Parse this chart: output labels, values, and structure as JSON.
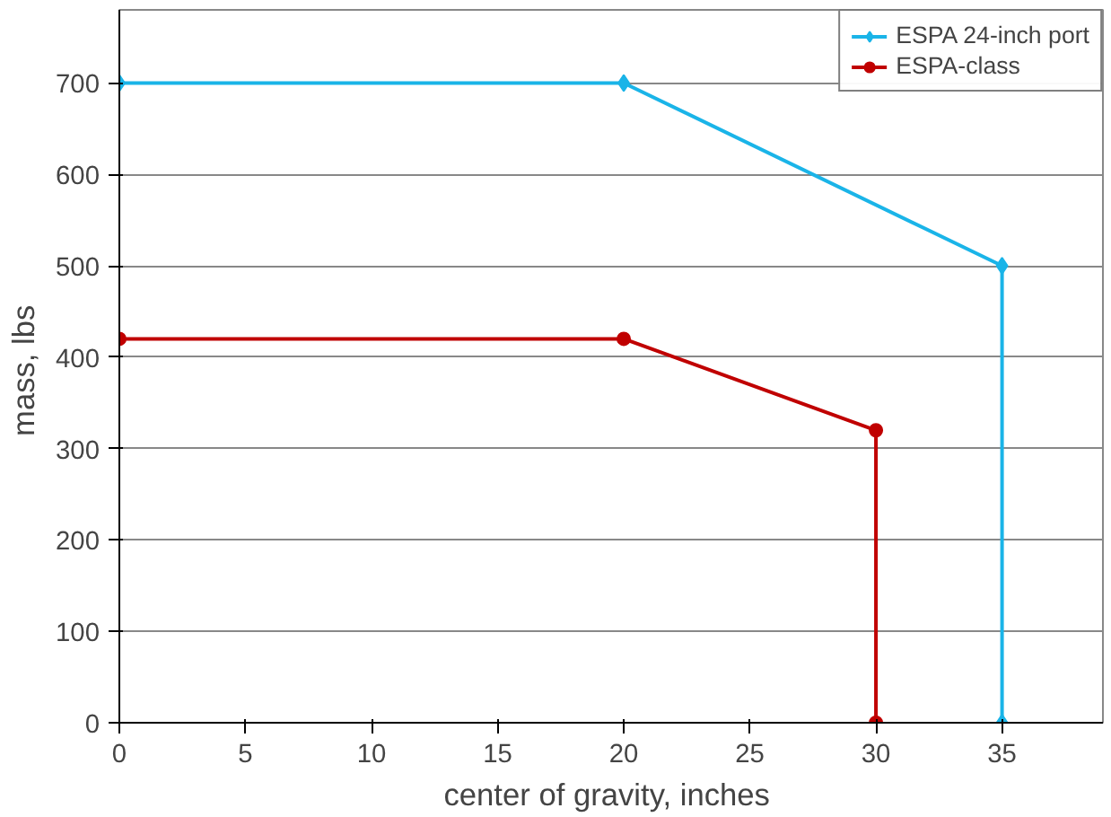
{
  "chart_data": {
    "type": "line",
    "xlabel": "center of gravity,  inches",
    "ylabel": "mass,  lbs",
    "xlim": [
      0,
      39
    ],
    "ylim": [
      0,
      780
    ],
    "xticks": [
      0,
      5,
      10,
      15,
      20,
      25,
      30,
      35
    ],
    "yticks": [
      0,
      100,
      200,
      300,
      400,
      500,
      600,
      700
    ],
    "grid": "y",
    "legend": "top right",
    "series": [
      {
        "name": "ESPA 24-inch port",
        "color": "#1ab4e8",
        "marker": "diamond",
        "x": [
          0,
          20,
          35,
          35
        ],
        "values": [
          700,
          700,
          500,
          0
        ]
      },
      {
        "name": "ESPA-class",
        "color": "#c00000",
        "marker": "circle",
        "x": [
          0,
          20,
          30,
          30
        ],
        "values": [
          420,
          420,
          320,
          0
        ]
      }
    ]
  }
}
